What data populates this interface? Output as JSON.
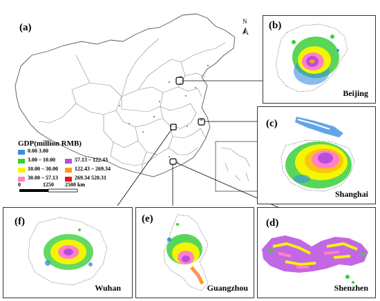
{
  "main_panel": {
    "label": "(a)"
  },
  "north_arrow": {
    "letter": "N"
  },
  "legend": {
    "title": "GDP(million RMB)",
    "items": [
      {
        "range": "0.00  3.00",
        "color": "#3b8fe0"
      },
      {
        "range": "3.00 – 10.00",
        "color": "#3ccf3c"
      },
      {
        "range": "10.00 – 30.00",
        "color": "#f5f500"
      },
      {
        "range": "30.00 – 57.13",
        "color": "#ff80c8"
      },
      {
        "range": "57.13 – 122.43",
        "color": "#b84de0"
      },
      {
        "range": "122.43 – 269.34",
        "color": "#ff9a1a"
      },
      {
        "range": "269.34   520.31",
        "color": "#f01010"
      }
    ]
  },
  "scale_bar": {
    "labels": [
      "0",
      "1250",
      "2500 km"
    ]
  },
  "insets": {
    "b": {
      "label": "(b)",
      "city": "Beijing"
    },
    "c": {
      "label": "(c)",
      "city": "Shanghai"
    },
    "d": {
      "label": "(d)",
      "city": "Shenzhen"
    },
    "e": {
      "label": "(e)",
      "city": "Guangzhou"
    },
    "f": {
      "label": "(f)",
      "city": "Wuhan"
    }
  }
}
